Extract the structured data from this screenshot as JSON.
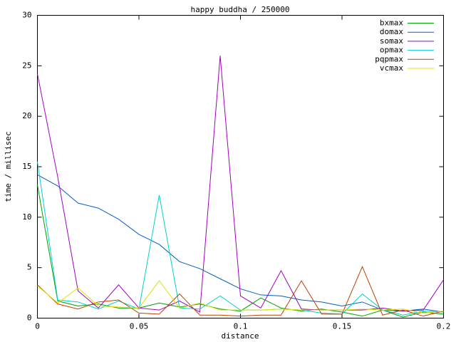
{
  "chart_data": {
    "type": "line",
    "title": "happy buddha / 250000",
    "x_label": "distance",
    "y_label": "time / millisec",
    "x": [
      0,
      0.01,
      0.02,
      0.03,
      0.04,
      0.05,
      0.06,
      0.07,
      0.08,
      0.09,
      0.1,
      0.11,
      0.12,
      0.13,
      0.14,
      0.15,
      0.16,
      0.17,
      0.18,
      0.19,
      0.2
    ],
    "series": [
      {
        "name": "bxmax",
        "color": "#00a000",
        "values": [
          13.2,
          1.7,
          1.2,
          1.4,
          1.0,
          1.0,
          1.5,
          1.1,
          1.4,
          0.9,
          0.7,
          2.0,
          1.0,
          0.7,
          0.9,
          0.6,
          0.2,
          0.8,
          0.1,
          0.6,
          0.4
        ]
      },
      {
        "name": "domax",
        "color": "#0060c0",
        "values": [
          14.2,
          13.1,
          11.4,
          10.9,
          9.8,
          8.3,
          7.3,
          5.6,
          4.9,
          3.9,
          2.9,
          2.3,
          2.2,
          1.8,
          1.6,
          1.2,
          1.6,
          0.8,
          0.7,
          0.9,
          0.6
        ]
      },
      {
        "name": "somax",
        "color": "#a000c0",
        "values": [
          24.2,
          14.0,
          2.7,
          1.0,
          3.3,
          1.0,
          0.8,
          1.7,
          0.6,
          26.0,
          2.2,
          1.0,
          4.7,
          0.9,
          0.8,
          0.8,
          0.8,
          1.0,
          0.7,
          0.8,
          3.8
        ]
      },
      {
        "name": "opmax",
        "color": "#00d0d0",
        "values": [
          15.5,
          1.8,
          1.6,
          0.9,
          1.7,
          0.9,
          12.2,
          1.0,
          0.9,
          2.2,
          0.8,
          0.8,
          0.9,
          0.8,
          0.5,
          0.4,
          2.4,
          0.8,
          0.3,
          0.7,
          0.6
        ]
      },
      {
        "name": "pqpmax",
        "color": "#c04000",
        "values": [
          3.3,
          1.4,
          0.9,
          1.6,
          1.8,
          0.5,
          0.4,
          2.4,
          0.3,
          0.3,
          0.2,
          0.3,
          0.3,
          3.7,
          0.4,
          0.4,
          5.1,
          0.3,
          0.8,
          0.2,
          0.7
        ]
      },
      {
        "name": "vcmax",
        "color": "#e0e000",
        "values": [
          3.2,
          1.5,
          3.0,
          1.2,
          1.1,
          1.0,
          3.7,
          1.0,
          1.5,
          0.8,
          0.8,
          0.8,
          0.9,
          0.8,
          0.8,
          0.8,
          0.9,
          0.8,
          0.9,
          0.5,
          0.7
        ]
      }
    ],
    "xlim": [
      0,
      0.2
    ],
    "xticks": [
      0,
      0.05,
      0.1,
      0.15,
      0.2
    ],
    "ylim": [
      0,
      30
    ],
    "yticks": [
      0,
      5,
      10,
      15,
      20,
      25,
      30
    ],
    "legend": "top-right"
  }
}
